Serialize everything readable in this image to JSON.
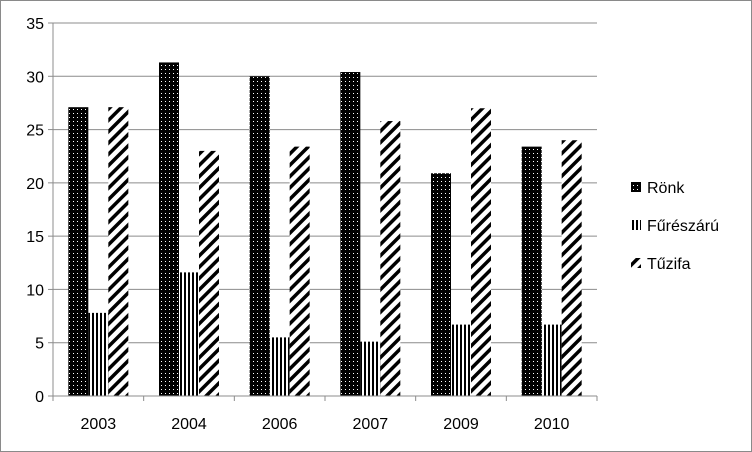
{
  "chart_data": {
    "type": "bar",
    "categories": [
      "2003",
      "2004",
      "2006",
      "2007",
      "2009",
      "2010"
    ],
    "series": [
      {
        "name": "Rönk",
        "values": [
          27.1,
          31.3,
          30.0,
          30.4,
          20.9,
          23.4
        ],
        "pattern": "dots"
      },
      {
        "name": "Fűrészárú",
        "values": [
          7.8,
          11.6,
          5.5,
          5.1,
          6.7,
          6.7
        ],
        "pattern": "vertical-lines"
      },
      {
        "name": "Tűzifa",
        "values": [
          27.1,
          23.0,
          23.4,
          25.8,
          27.0,
          24.0
        ],
        "pattern": "diagonal-lines"
      }
    ],
    "ylim": [
      0,
      35
    ],
    "yticks": [
      0,
      5,
      10,
      15,
      20,
      25,
      30,
      35
    ],
    "grid": true,
    "legend": "right"
  }
}
